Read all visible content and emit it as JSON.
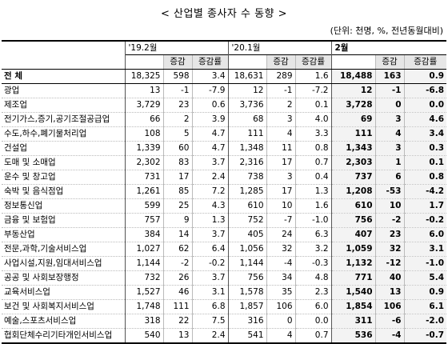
{
  "title": "< 산업별 종사자 수 동향 >",
  "unit": "(단위: 천명, %, 전년동월대비)",
  "periods": [
    "'19.2월",
    "'20.1월",
    "2월"
  ],
  "subheaders": {
    "count": "",
    "change": "증감",
    "rate": "증감률"
  },
  "rows": [
    {
      "name": "전  체",
      "p1": [
        "18,325",
        "598",
        "3.4"
      ],
      "p2": [
        "18,631",
        "289",
        "1.6"
      ],
      "p3": [
        "18,488",
        "163",
        "0.9"
      ]
    },
    {
      "name": "광업",
      "p1": [
        "13",
        "-1",
        "-7.9"
      ],
      "p2": [
        "12",
        "-1",
        "-7.2"
      ],
      "p3": [
        "12",
        "-1",
        "-6.8"
      ]
    },
    {
      "name": "제조업",
      "p1": [
        "3,729",
        "23",
        "0.6"
      ],
      "p2": [
        "3,736",
        "2",
        "0.1"
      ],
      "p3": [
        "3,728",
        "0",
        "0.0"
      ]
    },
    {
      "name": "전기가스,증기,공기조절공급업",
      "p1": [
        "66",
        "2",
        "3.9"
      ],
      "p2": [
        "68",
        "3",
        "4.0"
      ],
      "p3": [
        "69",
        "3",
        "4.6"
      ]
    },
    {
      "name": "수도,하수,폐기물처리업",
      "p1": [
        "108",
        "5",
        "4.7"
      ],
      "p2": [
        "111",
        "4",
        "3.3"
      ],
      "p3": [
        "111",
        "4",
        "3.4"
      ]
    },
    {
      "name": "건설업",
      "p1": [
        "1,339",
        "60",
        "4.7"
      ],
      "p2": [
        "1,348",
        "11",
        "0.8"
      ],
      "p3": [
        "1,343",
        "3",
        "0.3"
      ]
    },
    {
      "name": "도매 및 소매업",
      "p1": [
        "2,302",
        "83",
        "3.7"
      ],
      "p2": [
        "2,316",
        "17",
        "0.7"
      ],
      "p3": [
        "2,303",
        "1",
        "0.1"
      ]
    },
    {
      "name": "운수 및 창고업",
      "p1": [
        "731",
        "17",
        "2.4"
      ],
      "p2": [
        "738",
        "3",
        "0.4"
      ],
      "p3": [
        "737",
        "6",
        "0.8"
      ]
    },
    {
      "name": "숙박 및 음식점업",
      "p1": [
        "1,261",
        "85",
        "7.2"
      ],
      "p2": [
        "1,285",
        "17",
        "1.3"
      ],
      "p3": [
        "1,208",
        "-53",
        "-4.2"
      ]
    },
    {
      "name": "정보통신업",
      "p1": [
        "599",
        "25",
        "4.3"
      ],
      "p2": [
        "610",
        "10",
        "1.6"
      ],
      "p3": [
        "610",
        "10",
        "1.7"
      ]
    },
    {
      "name": "금융 및 보험업",
      "p1": [
        "757",
        "9",
        "1.3"
      ],
      "p2": [
        "752",
        "-7",
        "-1.0"
      ],
      "p3": [
        "756",
        "-2",
        "-0.2"
      ]
    },
    {
      "name": "부동산업",
      "p1": [
        "384",
        "14",
        "3.7"
      ],
      "p2": [
        "405",
        "24",
        "6.3"
      ],
      "p3": [
        "407",
        "23",
        "6.0"
      ]
    },
    {
      "name": "전문,과학,기술서비스업",
      "p1": [
        "1,027",
        "62",
        "6.4"
      ],
      "p2": [
        "1,056",
        "32",
        "3.2"
      ],
      "p3": [
        "1,059",
        "32",
        "3.1"
      ]
    },
    {
      "name": "사업시설,지원,임대서비스업",
      "p1": [
        "1,144",
        "-2",
        "-0.2"
      ],
      "p2": [
        "1,144",
        "-4",
        "-0.3"
      ],
      "p3": [
        "1,132",
        "-12",
        "-1.0"
      ]
    },
    {
      "name": "공공 및 사회보장행정",
      "p1": [
        "732",
        "26",
        "3.7"
      ],
      "p2": [
        "756",
        "34",
        "4.8"
      ],
      "p3": [
        "771",
        "40",
        "5.4"
      ]
    },
    {
      "name": "교육서비스업",
      "p1": [
        "1,527",
        "46",
        "3.1"
      ],
      "p2": [
        "1,578",
        "35",
        "2.3"
      ],
      "p3": [
        "1,540",
        "13",
        "0.9"
      ]
    },
    {
      "name": "보건 및 사회복지서비스업",
      "p1": [
        "1,748",
        "111",
        "6.8"
      ],
      "p2": [
        "1,857",
        "106",
        "6.0"
      ],
      "p3": [
        "1,854",
        "106",
        "6.1"
      ]
    },
    {
      "name": "예술,스포츠서비스업",
      "p1": [
        "318",
        "22",
        "7.5"
      ],
      "p2": [
        "316",
        "0",
        "0.0"
      ],
      "p3": [
        "311",
        "-6",
        "-2.0"
      ]
    },
    {
      "name": "협회단체수리기타개인서비스업",
      "p1": [
        "540",
        "13",
        "2.4"
      ],
      "p2": [
        "541",
        "4",
        "0.7"
      ],
      "p3": [
        "536",
        "-4",
        "-0.7"
      ]
    }
  ]
}
